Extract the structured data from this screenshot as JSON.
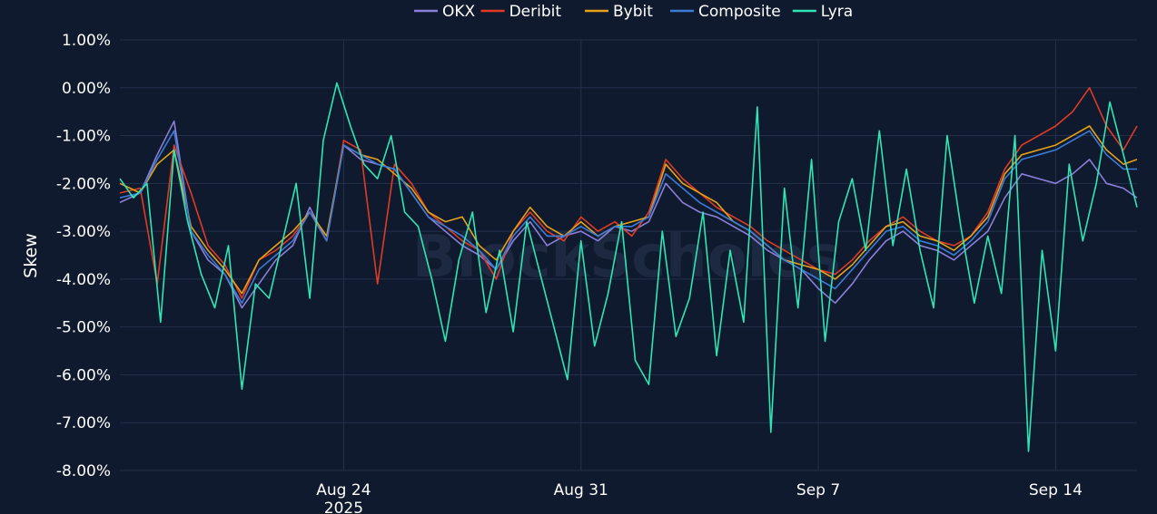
{
  "chart_data": {
    "type": "line",
    "ylabel": "Skew",
    "watermark": "BlockScholes",
    "y_ticks": [
      "1.00%",
      "0.00%",
      "-1.00%",
      "-2.00%",
      "-3.00%",
      "-4.00%",
      "-5.00%",
      "-6.00%",
      "-7.00%",
      "-8.00%"
    ],
    "ylim": [
      -8,
      1
    ],
    "x_ticks": [
      {
        "label": "Aug 24",
        "sublabel": "2025",
        "day": 24
      },
      {
        "label": "Aug 31",
        "sublabel": "",
        "day": 31
      },
      {
        "label": "Sep 7",
        "sublabel": "",
        "day": 38
      },
      {
        "label": "Sep 14",
        "sublabel": "",
        "day": 45
      }
    ],
    "xlim": [
      17.4,
      47.4
    ],
    "grid": true,
    "legend_position": "top-center",
    "series": [
      {
        "name": "OKX",
        "color": "#8b7fd9",
        "x": [
          17.4,
          18,
          18.5,
          19,
          19.5,
          20,
          20.5,
          21,
          21.5,
          22,
          22.5,
          23,
          23.5,
          24,
          24.5,
          25,
          25.5,
          26,
          26.5,
          27,
          27.5,
          28,
          28.5,
          29,
          29.5,
          30,
          30.5,
          31,
          31.5,
          32,
          32.5,
          33,
          33.5,
          34,
          34.5,
          35,
          35.5,
          36,
          36.5,
          37,
          37.5,
          38,
          38.5,
          39,
          39.5,
          40,
          40.5,
          41,
          41.5,
          42,
          42.5,
          43,
          43.5,
          44,
          44.5,
          45,
          45.5,
          46,
          46.5,
          47,
          47.4
        ],
        "y": [
          -2.4,
          -2.2,
          -1.4,
          -0.7,
          -3.0,
          -3.6,
          -3.9,
          -4.6,
          -4.1,
          -3.6,
          -3.3,
          -2.5,
          -3.2,
          -1.2,
          -1.5,
          -1.6,
          -1.7,
          -2.2,
          -2.7,
          -3.0,
          -3.3,
          -3.5,
          -3.8,
          -3.2,
          -2.8,
          -3.3,
          -3.1,
          -3.0,
          -3.2,
          -2.9,
          -3.0,
          -2.8,
          -2.0,
          -2.4,
          -2.6,
          -2.7,
          -2.9,
          -3.1,
          -3.4,
          -3.6,
          -3.8,
          -4.2,
          -4.5,
          -4.1,
          -3.6,
          -3.2,
          -3.0,
          -3.3,
          -3.4,
          -3.6,
          -3.3,
          -3.0,
          -2.3,
          -1.8,
          -1.9,
          -2.0,
          -1.8,
          -1.5,
          -2.0,
          -2.1,
          -2.3
        ]
      },
      {
        "name": "Deribit",
        "color": "#e03b24",
        "x": [
          17.4,
          18,
          18.5,
          19,
          19.5,
          20,
          20.5,
          21,
          21.5,
          22,
          22.5,
          23,
          23.5,
          24,
          24.5,
          25,
          25.5,
          26,
          26.5,
          27,
          27.5,
          28,
          28.5,
          29,
          29.5,
          30,
          30.5,
          31,
          31.5,
          32,
          32.5,
          33,
          33.5,
          34,
          34.5,
          35,
          35.5,
          36,
          36.5,
          37,
          37.5,
          38,
          38.5,
          39,
          39.5,
          40,
          40.5,
          41,
          41.5,
          42,
          42.5,
          43,
          43.5,
          44,
          44.5,
          45,
          45.5,
          46,
          46.5,
          47,
          47.4
        ],
        "y": [
          -2.2,
          -2.1,
          -4.1,
          -1.2,
          -2.2,
          -3.3,
          -3.7,
          -4.4,
          -3.6,
          -3.4,
          -3.1,
          -2.6,
          -3.2,
          -1.1,
          -1.3,
          -4.1,
          -1.6,
          -2.0,
          -2.6,
          -2.9,
          -3.2,
          -3.4,
          -4.0,
          -3.0,
          -2.6,
          -3.0,
          -3.2,
          -2.7,
          -3.0,
          -2.8,
          -3.1,
          -2.6,
          -1.5,
          -1.9,
          -2.2,
          -2.5,
          -2.7,
          -2.9,
          -3.2,
          -3.4,
          -3.6,
          -3.8,
          -3.9,
          -3.6,
          -3.2,
          -2.9,
          -2.7,
          -3.0,
          -3.2,
          -3.3,
          -3.1,
          -2.6,
          -1.7,
          -1.2,
          -1.0,
          -0.8,
          -0.5,
          0.0,
          -0.8,
          -1.3,
          -0.8
        ]
      },
      {
        "name": "Bybit",
        "color": "#e5a21a",
        "x": [
          17.4,
          18,
          18.5,
          19,
          19.5,
          20,
          20.5,
          21,
          21.5,
          22,
          22.5,
          23,
          23.5,
          24,
          24.5,
          25,
          25.5,
          26,
          26.5,
          27,
          27.5,
          28,
          28.5,
          29,
          29.5,
          30,
          30.5,
          31,
          31.5,
          32,
          32.5,
          33,
          33.5,
          34,
          34.5,
          35,
          35.5,
          36,
          36.5,
          37,
          37.5,
          38,
          38.5,
          39,
          39.5,
          40,
          40.5,
          41,
          41.5,
          42,
          42.5,
          43,
          43.5,
          44,
          44.5,
          45,
          45.5,
          46,
          46.5,
          47,
          47.4
        ],
        "y": [
          -2.0,
          -2.2,
          -1.6,
          -1.3,
          -2.9,
          -3.4,
          -3.8,
          -4.3,
          -3.6,
          -3.3,
          -3.0,
          -2.6,
          -3.1,
          -1.2,
          -1.4,
          -1.5,
          -1.8,
          -2.1,
          -2.6,
          -2.8,
          -2.7,
          -3.3,
          -3.6,
          -3.0,
          -2.5,
          -2.9,
          -3.1,
          -2.8,
          -3.1,
          -2.9,
          -2.8,
          -2.7,
          -1.6,
          -2.0,
          -2.2,
          -2.4,
          -2.8,
          -3.0,
          -3.3,
          -3.6,
          -3.7,
          -3.8,
          -4.0,
          -3.7,
          -3.3,
          -2.9,
          -2.8,
          -3.1,
          -3.2,
          -3.4,
          -3.1,
          -2.7,
          -1.8,
          -1.4,
          -1.3,
          -1.2,
          -1.0,
          -0.8,
          -1.3,
          -1.6,
          -1.5
        ]
      },
      {
        "name": "Composite",
        "color": "#3c7bd6",
        "x": [
          17.4,
          18,
          18.5,
          19,
          19.5,
          20,
          20.5,
          21,
          21.5,
          22,
          22.5,
          23,
          23.5,
          24,
          24.5,
          25,
          25.5,
          26,
          26.5,
          27,
          27.5,
          28,
          28.5,
          29,
          29.5,
          30,
          30.5,
          31,
          31.5,
          32,
          32.5,
          33,
          33.5,
          34,
          34.5,
          35,
          35.5,
          36,
          36.5,
          37,
          37.5,
          38,
          38.5,
          39,
          39.5,
          40,
          40.5,
          41,
          41.5,
          42,
          42.5,
          43,
          43.5,
          44,
          44.5,
          45,
          45.5,
          46,
          46.5,
          47,
          47.4
        ],
        "y": [
          -2.3,
          -2.2,
          -1.5,
          -0.9,
          -3.0,
          -3.5,
          -3.9,
          -4.5,
          -3.8,
          -3.5,
          -3.2,
          -2.6,
          -3.2,
          -1.2,
          -1.4,
          -1.6,
          -1.7,
          -2.2,
          -2.7,
          -2.9,
          -3.1,
          -3.4,
          -3.8,
          -3.1,
          -2.7,
          -3.1,
          -3.1,
          -2.9,
          -3.1,
          -2.9,
          -2.9,
          -2.7,
          -1.8,
          -2.1,
          -2.4,
          -2.6,
          -2.8,
          -3.0,
          -3.3,
          -3.6,
          -3.8,
          -4.0,
          -4.2,
          -3.8,
          -3.4,
          -3.0,
          -2.9,
          -3.2,
          -3.3,
          -3.5,
          -3.2,
          -2.8,
          -1.9,
          -1.5,
          -1.4,
          -1.3,
          -1.1,
          -0.9,
          -1.4,
          -1.7,
          -1.7
        ]
      },
      {
        "name": "Lyra",
        "color": "#2ee6b4",
        "x": [
          17.4,
          17.8,
          18.2,
          18.6,
          19,
          19.4,
          19.8,
          20.2,
          20.6,
          21,
          21.4,
          21.8,
          22.2,
          22.6,
          23,
          23.4,
          23.8,
          24.2,
          24.6,
          25,
          25.4,
          25.8,
          26.2,
          26.6,
          27,
          27.4,
          27.8,
          28.2,
          28.6,
          29,
          29.4,
          29.8,
          30.2,
          30.6,
          31,
          31.4,
          31.8,
          32.2,
          32.6,
          33,
          33.4,
          33.8,
          34.2,
          34.6,
          35,
          35.4,
          35.8,
          36.2,
          36.6,
          37,
          37.4,
          37.8,
          38.2,
          38.6,
          39,
          39.4,
          39.8,
          40.2,
          40.6,
          41,
          41.4,
          41.8,
          42.2,
          42.6,
          43,
          43.4,
          43.8,
          44.2,
          44.6,
          45,
          45.4,
          45.8,
          46.2,
          46.6,
          47,
          47.4
        ],
        "y": [
          -1.9,
          -2.3,
          -2.0,
          -4.9,
          -1.3,
          -2.8,
          -3.9,
          -4.6,
          -3.3,
          -6.3,
          -4.1,
          -4.4,
          -3.2,
          -2.0,
          -4.4,
          -1.1,
          0.1,
          -0.8,
          -1.6,
          -1.9,
          -1.0,
          -2.6,
          -2.9,
          -4.0,
          -5.3,
          -3.6,
          -2.6,
          -4.7,
          -3.4,
          -5.1,
          -2.8,
          -3.9,
          -5.0,
          -6.1,
          -3.2,
          -5.4,
          -4.3,
          -2.8,
          -5.7,
          -6.2,
          -3.0,
          -5.2,
          -4.4,
          -2.6,
          -5.6,
          -3.4,
          -4.9,
          -0.4,
          -7.2,
          -2.1,
          -4.6,
          -1.5,
          -5.3,
          -2.8,
          -1.9,
          -3.4,
          -0.9,
          -3.3,
          -1.7,
          -3.4,
          -4.6,
          -1.0,
          -2.9,
          -4.5,
          -3.1,
          -4.3,
          -1.0,
          -7.6,
          -3.4,
          -5.5,
          -1.6,
          -3.2,
          -2.0,
          -0.3,
          -1.4,
          -2.5
        ]
      }
    ]
  }
}
